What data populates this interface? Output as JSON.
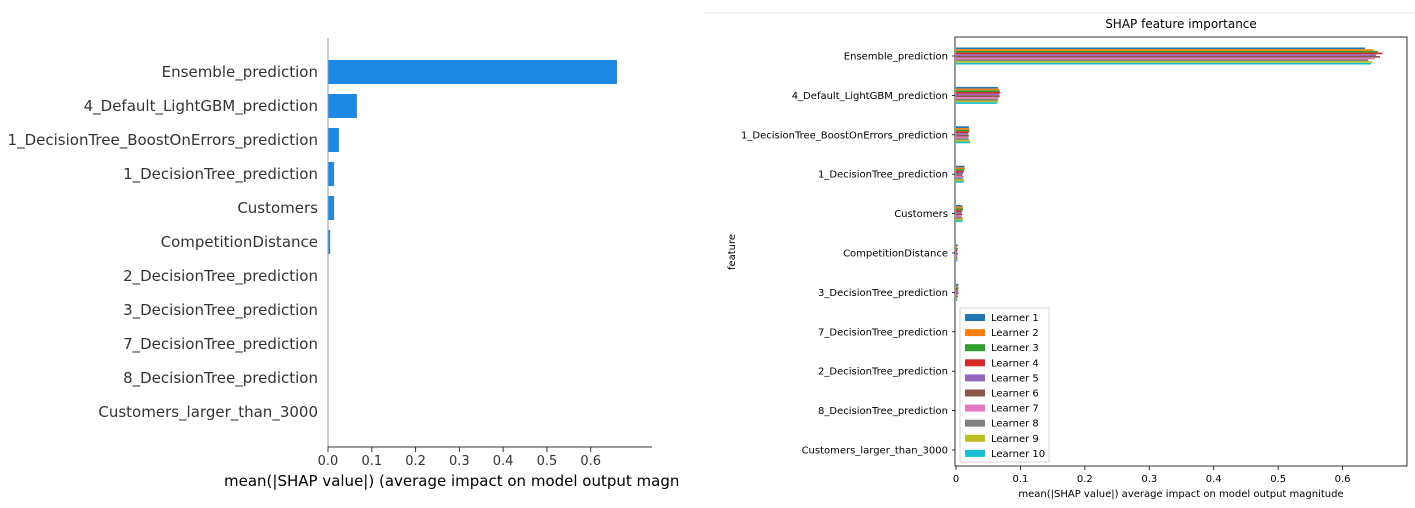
{
  "chart_data": [
    {
      "type": "bar",
      "orientation": "horizontal",
      "title": "",
      "xlabel": "mean(|SHAP value|) (average impact on model output magnitude)",
      "ylabel": "",
      "xlim": [
        0,
        0.74
      ],
      "xticks": [
        "0.0",
        "0.1",
        "0.2",
        "0.3",
        "0.4",
        "0.5",
        "0.6"
      ],
      "categories": [
        "Ensemble_prediction",
        "4_Default_LightGBM_prediction",
        "1_DecisionTree_BoostOnErrors_prediction",
        "1_DecisionTree_prediction",
        "Customers",
        "CompetitionDistance",
        "2_DecisionTree_prediction",
        "3_DecisionTree_prediction",
        "7_DecisionTree_prediction",
        "8_DecisionTree_prediction",
        "Customers_larger_than_3000"
      ],
      "values": [
        0.66,
        0.066,
        0.025,
        0.014,
        0.014,
        0.005,
        0,
        0,
        0,
        0,
        0
      ],
      "color": "#1e88e5"
    },
    {
      "type": "bar",
      "orientation": "horizontal",
      "title": "SHAP feature importance",
      "xlabel": "mean(|SHAP value|) average impact on model output magnitude",
      "ylabel": "feature",
      "xlim": [
        0,
        0.7
      ],
      "xticks": [
        "0",
        "0.1",
        "0.2",
        "0.3",
        "0.4",
        "0.5",
        "0.6"
      ],
      "legend_position": "lower-left",
      "categories": [
        "Ensemble_prediction",
        "4_Default_LightGBM_prediction",
        "1_DecisionTree_BoostOnErrors_prediction",
        "1_DecisionTree_prediction",
        "Customers",
        "CompetitionDistance",
        "3_DecisionTree_prediction",
        "7_DecisionTree_prediction",
        "2_DecisionTree_prediction",
        "8_DecisionTree_prediction",
        "Customers_larger_than_3000"
      ],
      "series": [
        {
          "name": "Learner 1",
          "color": "#1f77b4",
          "values": [
            0.635,
            0.065,
            0.02,
            0.013,
            0.01,
            0.003,
            0.004,
            0,
            0,
            0,
            0
          ]
        },
        {
          "name": "Learner 2",
          "color": "#ff7f0e",
          "values": [
            0.648,
            0.067,
            0.021,
            0.014,
            0.011,
            0.002,
            0.003,
            0,
            0,
            0,
            0
          ]
        },
        {
          "name": "Learner 3",
          "color": "#2ca02c",
          "values": [
            0.655,
            0.068,
            0.021,
            0.013,
            0.011,
            0.003,
            0.004,
            0,
            0,
            0,
            0
          ]
        },
        {
          "name": "Learner 4",
          "color": "#d62728",
          "values": [
            0.662,
            0.069,
            0.02,
            0.012,
            0.01,
            0.002,
            0.003,
            0,
            0,
            0,
            0
          ]
        },
        {
          "name": "Learner 5",
          "color": "#9467bd",
          "values": [
            0.652,
            0.067,
            0.019,
            0.011,
            0.009,
            0.002,
            0.003,
            0,
            0,
            0,
            0
          ]
        },
        {
          "name": "Learner 6",
          "color": "#8c564b",
          "values": [
            0.658,
            0.068,
            0.02,
            0.01,
            0.01,
            0.003,
            0.004,
            0,
            0,
            0,
            0
          ]
        },
        {
          "name": "Learner 7",
          "color": "#e377c2",
          "values": [
            0.65,
            0.066,
            0.019,
            0.012,
            0.009,
            0.002,
            0.003,
            0,
            0,
            0,
            0
          ]
        },
        {
          "name": "Learner 8",
          "color": "#7f7f7f",
          "values": [
            0.64,
            0.065,
            0.02,
            0.011,
            0.01,
            0.002,
            0.003,
            0,
            0,
            0,
            0
          ]
        },
        {
          "name": "Learner 9",
          "color": "#bcbd22",
          "values": [
            0.646,
            0.066,
            0.021,
            0.013,
            0.011,
            0.003,
            0.002,
            0,
            0,
            0,
            0
          ]
        },
        {
          "name": "Learner 10",
          "color": "#17becf",
          "values": [
            0.644,
            0.064,
            0.022,
            0.012,
            0.01,
            0.002,
            0.002,
            0,
            0,
            0,
            0
          ]
        }
      ]
    }
  ]
}
